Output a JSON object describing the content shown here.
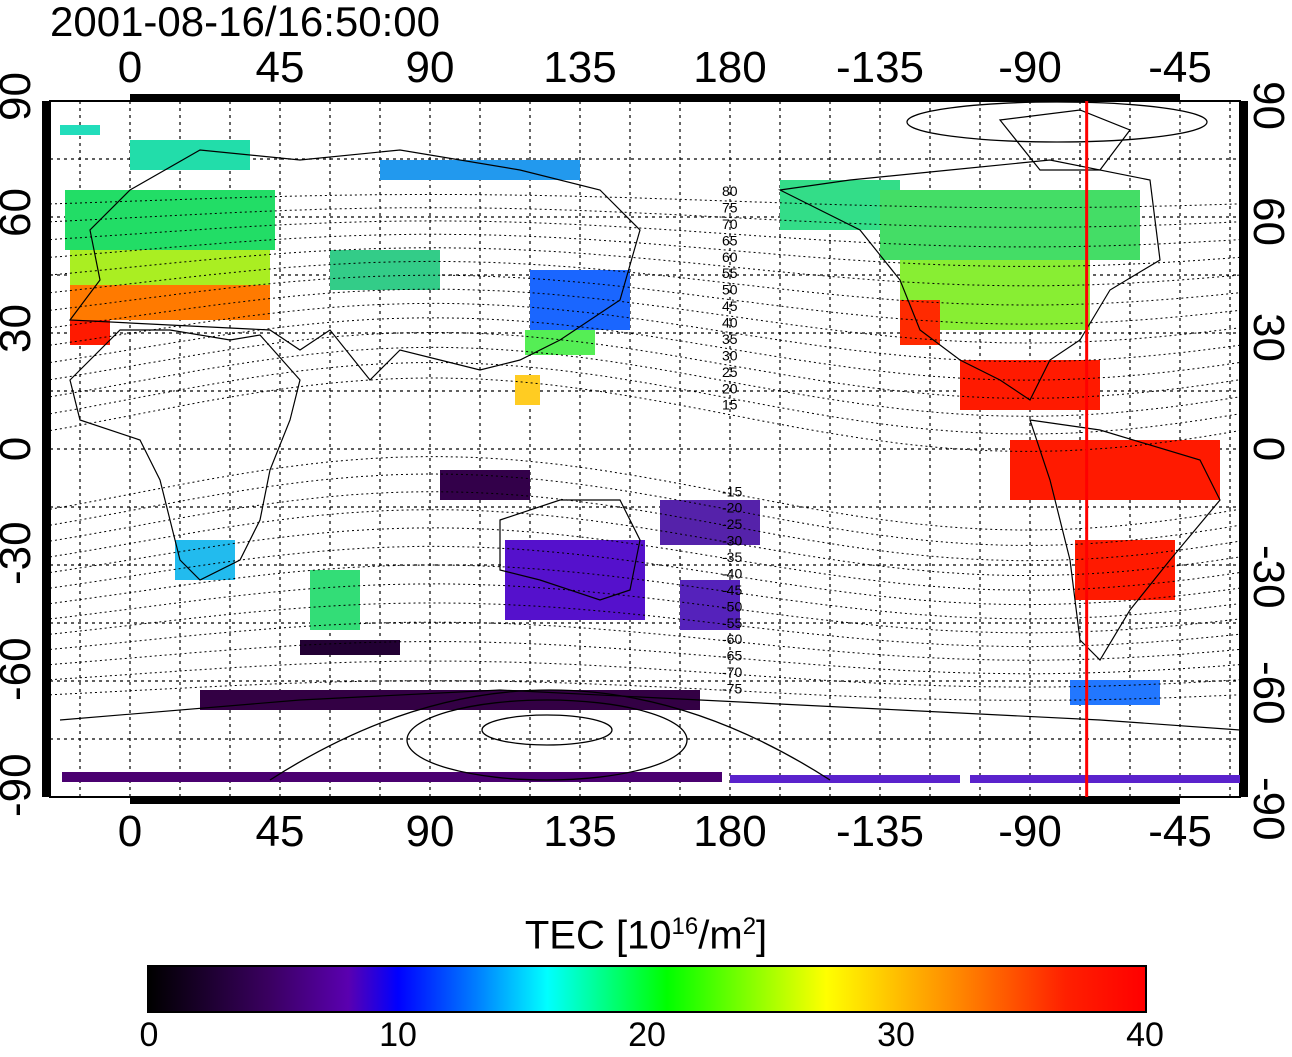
{
  "timestamp": "2001-08-16/16:50:00",
  "map": {
    "top_ticks": [
      "0",
      "45",
      "90",
      "135",
      "180",
      "-135",
      "-90",
      "-45"
    ],
    "bottom_ticks": [
      "0",
      "45",
      "90",
      "135",
      "180",
      "-135",
      "-90",
      "-45"
    ],
    "left_ticks": [
      "90",
      "60",
      "30",
      "0",
      "-30",
      "-60",
      "-90"
    ],
    "right_ticks": [
      "90",
      "60",
      "30",
      "0",
      "-30",
      "-60",
      "-90"
    ],
    "contour_labels": [
      "80",
      "75",
      "70",
      "65",
      "60",
      "55",
      "50",
      "45",
      "40",
      "35",
      "30",
      "25",
      "20",
      "15",
      "-15",
      "-20",
      "-25",
      "-30",
      "-35",
      "-40",
      "-45",
      "-50",
      "-55",
      "-60",
      "-65",
      "-70",
      "-75"
    ],
    "meridian_line_longitude": -73,
    "meridian_line_color": "#ff0000"
  },
  "colorbar": {
    "title": "TEC  [10",
    "title_sup1": "16",
    "title_mid": "/m",
    "title_sup2": "2",
    "title_end": "]",
    "ticks": [
      "0",
      "10",
      "20",
      "30",
      "40"
    ],
    "range": [
      0,
      40
    ]
  }
}
